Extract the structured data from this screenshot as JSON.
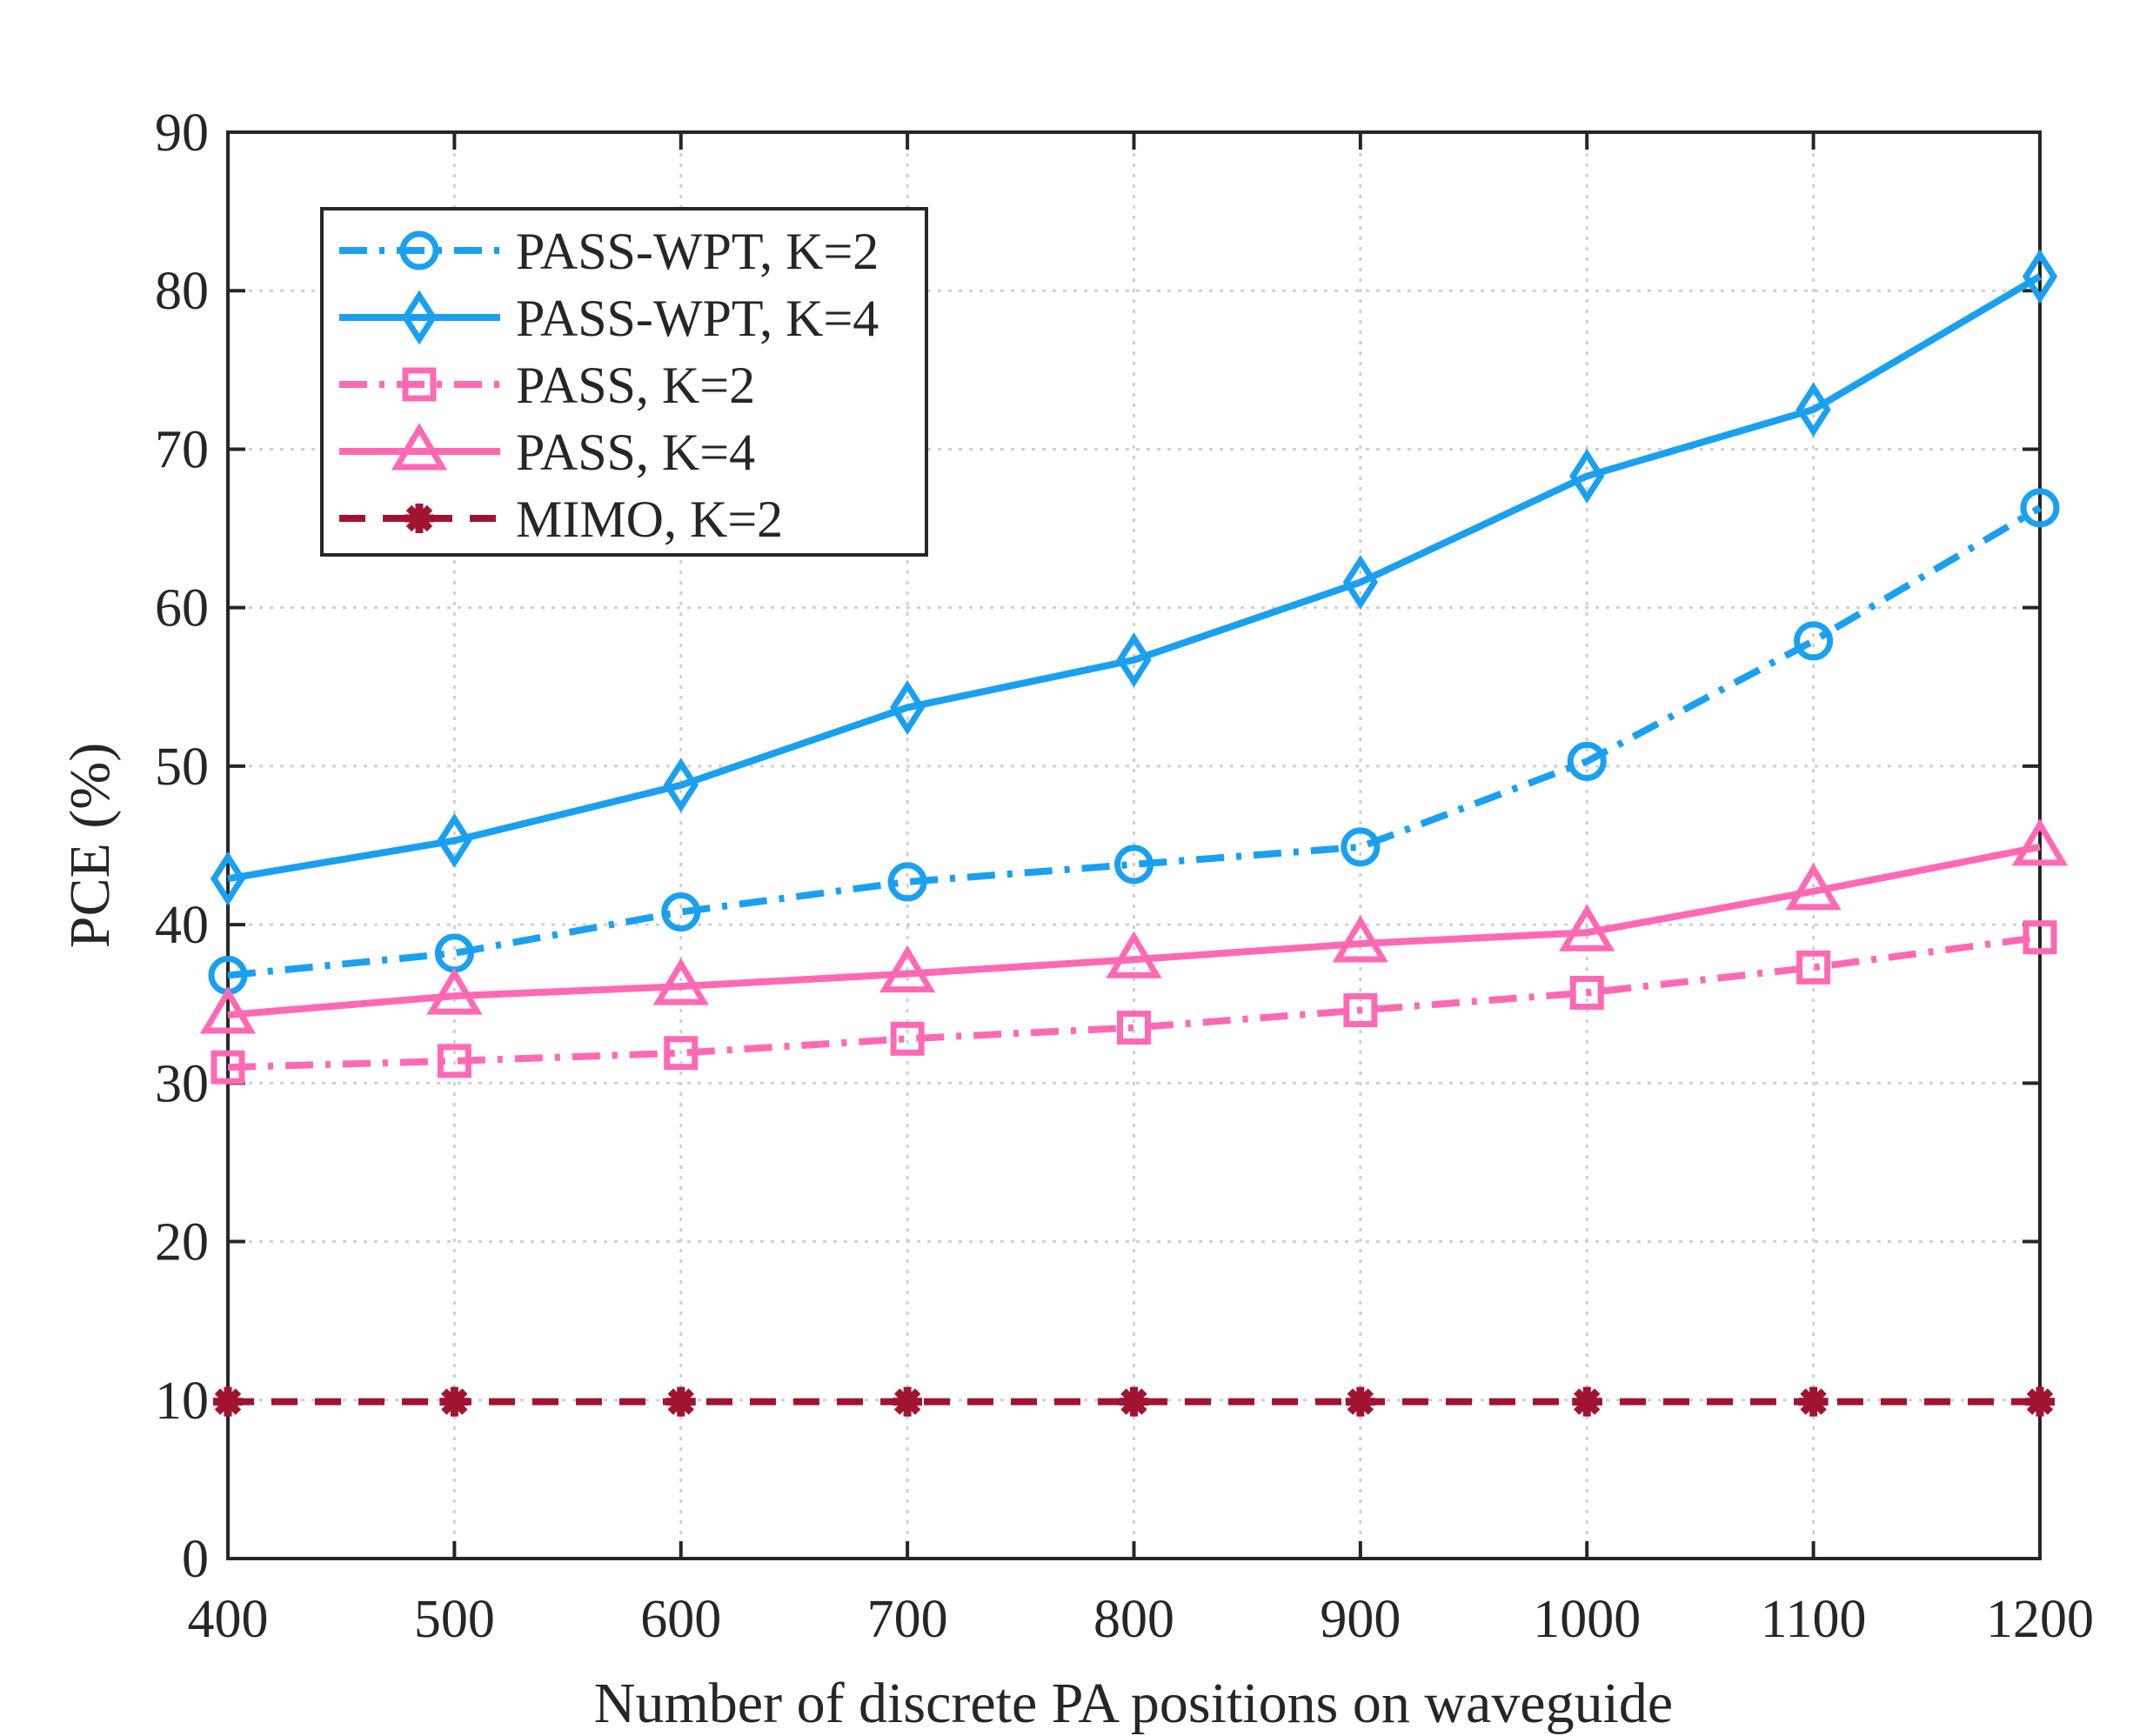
{
  "chart_data": {
    "type": "line",
    "title": "",
    "xlabel": "Number of discrete PA positions on waveguide",
    "ylabel": "PCE (%)",
    "xlim": [
      400,
      1200
    ],
    "ylim": [
      0,
      90
    ],
    "xticks": [
      400,
      500,
      600,
      700,
      800,
      900,
      1000,
      1100,
      1200
    ],
    "yticks": [
      0,
      10,
      20,
      30,
      40,
      50,
      60,
      70,
      80,
      90
    ],
    "grid": true,
    "legend_position": "top-left",
    "x": [
      400,
      500,
      600,
      700,
      800,
      900,
      1000,
      1100,
      1200
    ],
    "series": [
      {
        "name": "PASS-WPT, K=2",
        "values": [
          36.8,
          38.2,
          40.8,
          42.7,
          43.8,
          44.9,
          50.3,
          57.9,
          66.3
        ],
        "color": "#1aa0f0",
        "line": "dashdot",
        "marker": "circle"
      },
      {
        "name": "PASS-WPT, K=4",
        "values": [
          42.9,
          45.3,
          48.8,
          53.7,
          56.7,
          61.6,
          68.3,
          72.5,
          80.9
        ],
        "color": "#1aa0f0",
        "line": "solid",
        "marker": "diamond"
      },
      {
        "name": "PASS, K=2",
        "values": [
          31.0,
          31.4,
          31.9,
          32.8,
          33.5,
          34.6,
          35.7,
          37.3,
          39.2
        ],
        "color": "#ff69b4",
        "line": "dashdot",
        "marker": "square"
      },
      {
        "name": "PASS, K=4",
        "values": [
          34.3,
          35.5,
          36.1,
          36.9,
          37.8,
          38.8,
          39.5,
          42.1,
          44.9
        ],
        "color": "#ff69b4",
        "line": "solid",
        "marker": "triangle"
      },
      {
        "name": "MIMO, K=2",
        "values": [
          9.9,
          9.9,
          9.9,
          9.9,
          9.9,
          9.9,
          9.9,
          9.9,
          9.9
        ],
        "color": "#a01432",
        "line": "dashed",
        "marker": "asterisk"
      }
    ]
  }
}
